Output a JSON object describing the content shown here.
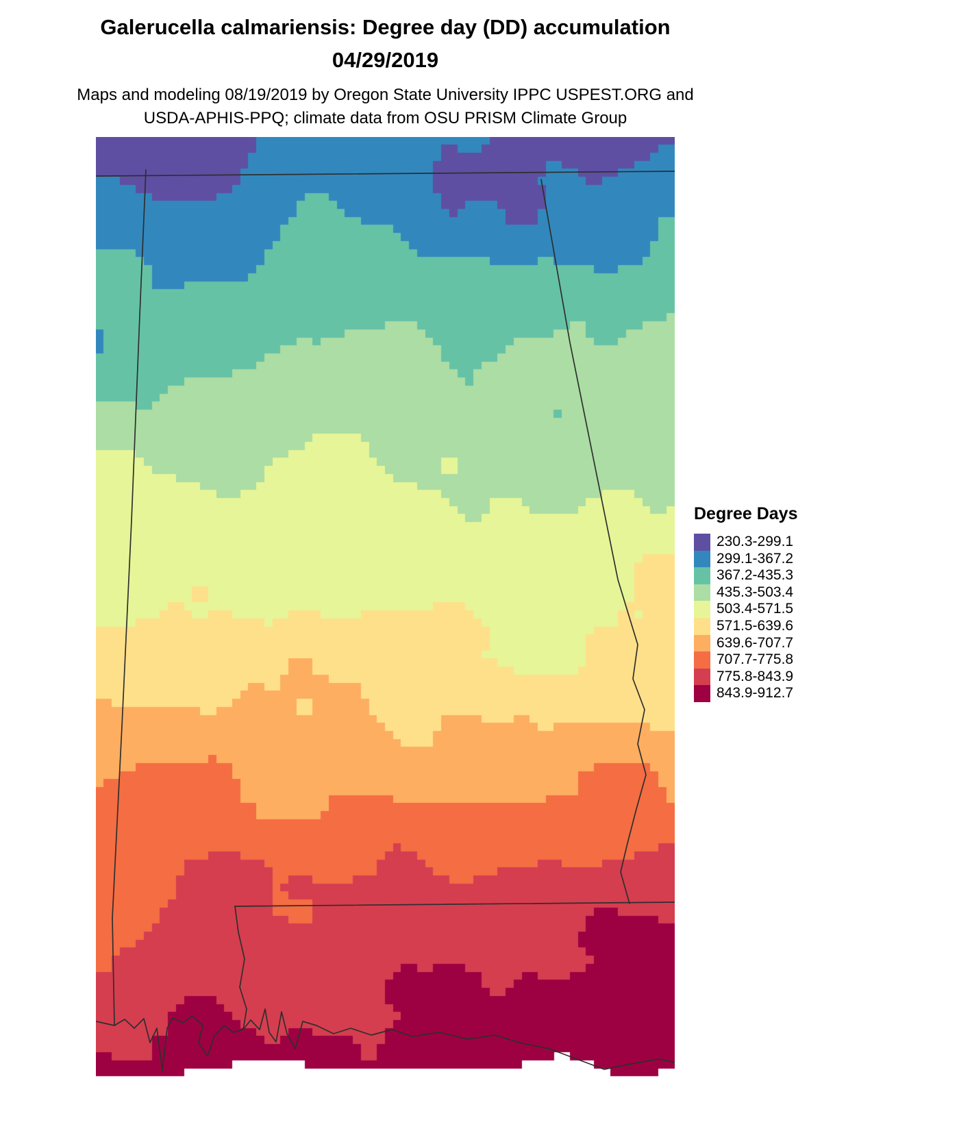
{
  "title": {
    "line1": "Galerucella calmariensis: Degree day (DD) accumulation",
    "line2": "04/29/2019"
  },
  "subtitle": {
    "line1": "Maps and modeling 08/19/2019 by Oregon State University IPPC USPEST.ORG and",
    "line2": "USDA-APHIS-PPQ; climate data from OSU PRISM Climate Group"
  },
  "legend": {
    "title": "Degree Days",
    "entries": [
      {
        "label": "230.3-299.1",
        "color": "#5E4FA2"
      },
      {
        "label": "299.1-367.2",
        "color": "#3288BD"
      },
      {
        "label": "367.2-435.3",
        "color": "#66C2A5"
      },
      {
        "label": "435.3-503.4",
        "color": "#ABDDA4"
      },
      {
        "label": "503.4-571.5",
        "color": "#E6F598"
      },
      {
        "label": "571.5-639.6",
        "color": "#FEE08B"
      },
      {
        "label": "639.6-707.7",
        "color": "#FDAE61"
      },
      {
        "label": "707.7-775.8",
        "color": "#F46D43"
      },
      {
        "label": "775.8-843.9",
        "color": "#D53E4F"
      },
      {
        "label": "843.9-912.7",
        "color": "#9E0142"
      }
    ]
  }
}
